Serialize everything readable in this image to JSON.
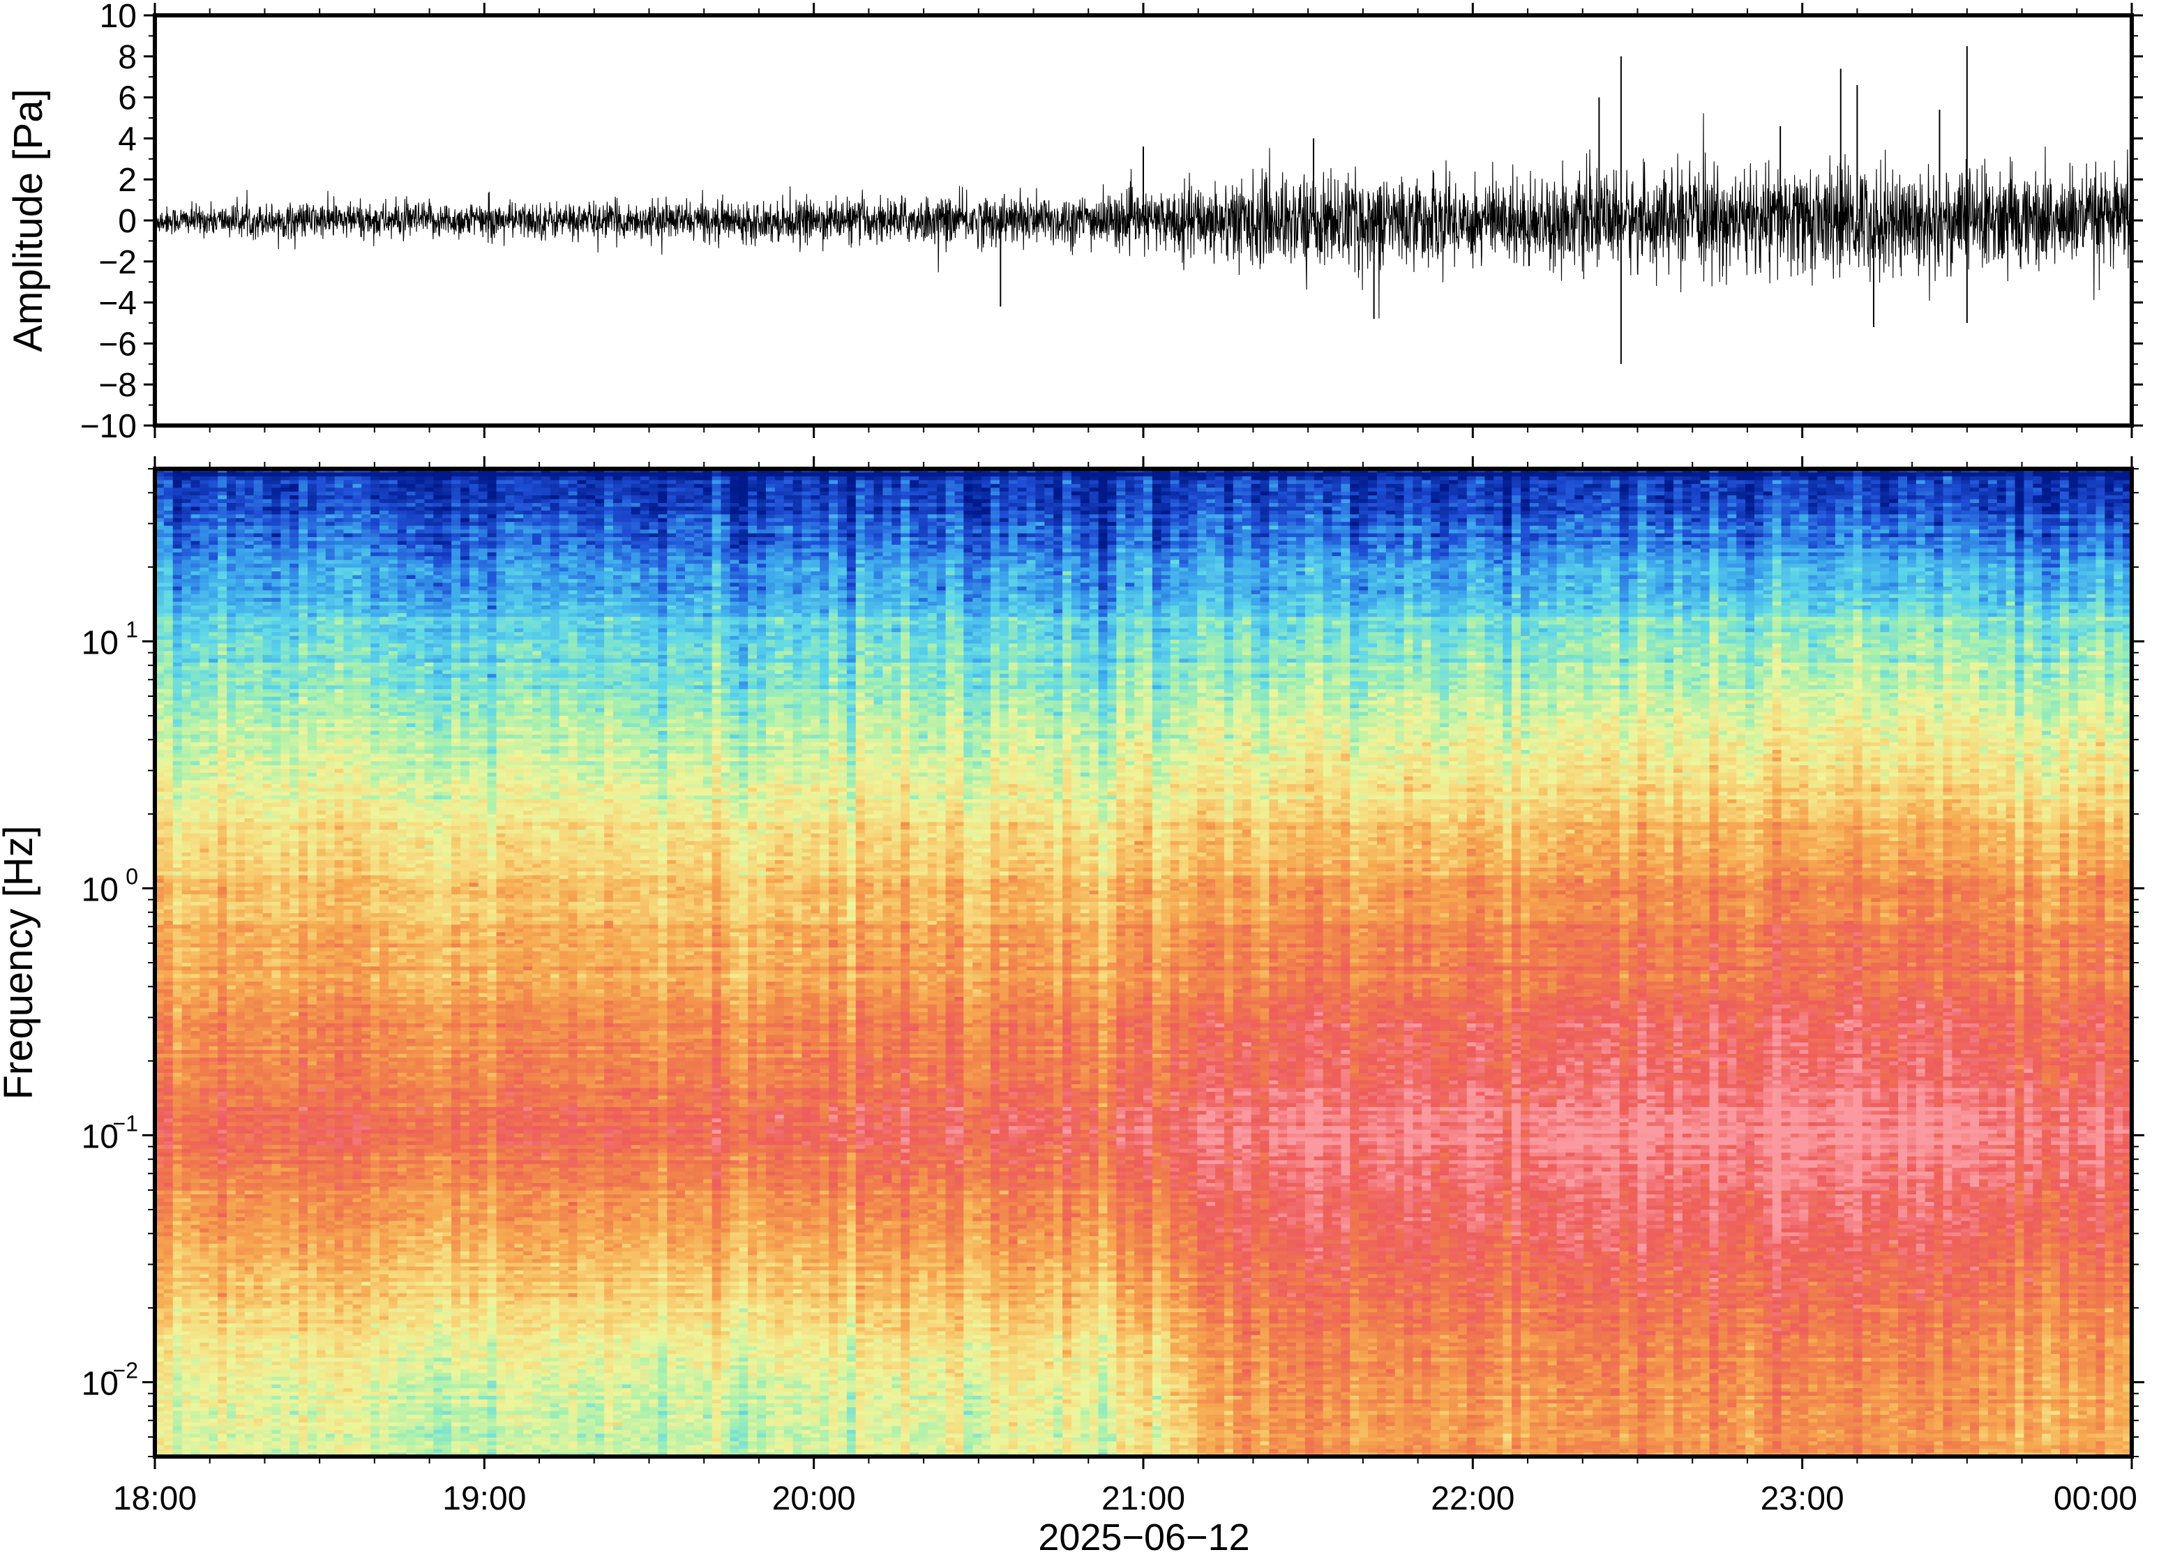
{
  "chart_data": [
    {
      "type": "line",
      "name": "waveform",
      "ylabel": "Amplitude [Pa]",
      "ylim": [
        -10,
        10
      ],
      "yticks": [
        {
          "v": 10,
          "label": "10"
        },
        {
          "v": 8,
          "label": "8"
        },
        {
          "v": 6,
          "label": "6"
        },
        {
          "v": 4,
          "label": "4"
        },
        {
          "v": 2,
          "label": "2"
        },
        {
          "v": 0,
          "label": "0"
        },
        {
          "v": -2,
          "label": "−2"
        },
        {
          "v": -4,
          "label": "−4"
        },
        {
          "v": -6,
          "label": "−6"
        },
        {
          "v": -8,
          "label": "−8"
        },
        {
          "v": -10,
          "label": "−10"
        }
      ],
      "xlim": [
        "18:00",
        "00:00"
      ],
      "envelope": {
        "x_hours": [
          0,
          0.5,
          1,
          1.5,
          2,
          2.5,
          3,
          3.3,
          3.5,
          4,
          4.5,
          5,
          5.5,
          6
        ],
        "typical_pa": [
          0.6,
          0.8,
          0.8,
          0.8,
          0.9,
          1.1,
          1.2,
          1.9,
          2.0,
          1.9,
          2.0,
          2.4,
          2.3,
          2.0
        ]
      },
      "spikes": [
        {
          "t": "20:34",
          "y": -4.2
        },
        {
          "t": "21:00",
          "y": 3.6
        },
        {
          "t": "21:31",
          "y": 4.0
        },
        {
          "t": "21:42",
          "y": -4.8
        },
        {
          "t": "22:23",
          "y": 6.0
        },
        {
          "t": "22:27",
          "y": 8.0
        },
        {
          "t": "22:27",
          "y": -7.0
        },
        {
          "t": "22:56",
          "y": 4.6
        },
        {
          "t": "23:07",
          "y": 7.4
        },
        {
          "t": "23:10",
          "y": 6.6
        },
        {
          "t": "23:13",
          "y": -5.2
        },
        {
          "t": "23:25",
          "y": 5.4
        },
        {
          "t": "23:30",
          "y": 8.5
        },
        {
          "t": "23:30",
          "y": -5.0
        }
      ],
      "colors": {
        "line": "#000000"
      }
    },
    {
      "type": "heatmap",
      "name": "spectrogram",
      "ylabel": "Frequency [Hz]",
      "xlabel": "2025−06−12",
      "yscale": "log",
      "ylim": [
        0.005,
        50
      ],
      "yticks": [
        {
          "v": 10,
          "base": "10",
          "exp": "1"
        },
        {
          "v": 1,
          "base": "10",
          "exp": "0"
        },
        {
          "v": 0.1,
          "base": "10",
          "exp": "−1"
        },
        {
          "v": 0.01,
          "base": "10",
          "exp": "−2"
        }
      ],
      "xticks": [
        "18:00",
        "19:00",
        "20:00",
        "21:00",
        "22:00",
        "23:00",
        "00:00"
      ],
      "xlim": [
        "18:00",
        "00:00"
      ],
      "colormap": [
        "#001a8c",
        "#1f4fd6",
        "#3ba4ec",
        "#5fd8e8",
        "#a6f0ae",
        "#eef59b",
        "#f7d77a",
        "#f6a850",
        "#f07d4c",
        "#ee5c5c",
        "#fa9aa0"
      ],
      "level_frac": {
        "x_hours": [
          0,
          1,
          2,
          3,
          3.3,
          4,
          5,
          6
        ],
        "band_10Hz": [
          0.3,
          0.3,
          0.31,
          0.32,
          0.33,
          0.35,
          0.37,
          0.38
        ],
        "band_1Hz": [
          0.62,
          0.63,
          0.64,
          0.67,
          0.7,
          0.74,
          0.76,
          0.75
        ],
        "band_0p1Hz": [
          0.84,
          0.86,
          0.88,
          0.91,
          0.96,
          0.99,
          1.0,
          0.97
        ],
        "band_0p01Hz": [
          0.5,
          0.47,
          0.48,
          0.55,
          0.75,
          0.76,
          0.77,
          0.72
        ]
      }
    }
  ]
}
